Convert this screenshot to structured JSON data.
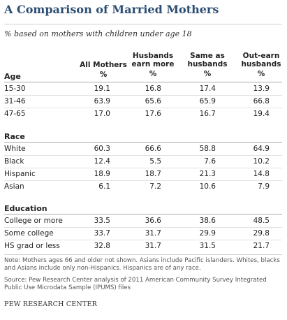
{
  "title": "A Comparison of Married Mothers",
  "subtitle": "% based on mothers with children under age 18",
  "columns": [
    {
      "label": "All Mothers",
      "unit": "%"
    },
    {
      "label": "Husbands earn more",
      "unit": "%"
    },
    {
      "label": "Same as husbands",
      "unit": "%"
    },
    {
      "label": "Out-earn husbands",
      "unit": "%"
    }
  ],
  "sections": {
    "age": {
      "label": "Age",
      "rows": [
        {
          "label": "15-30",
          "values": [
            "19.1",
            "16.8",
            "17.4",
            "13.9"
          ]
        },
        {
          "label": "31-46",
          "values": [
            "63.9",
            "65.6",
            "65.9",
            "66.8"
          ]
        },
        {
          "label": "47-65",
          "values": [
            "17.0",
            "17.6",
            "16.7",
            "19.4"
          ]
        }
      ]
    },
    "race": {
      "label": "Race",
      "rows": [
        {
          "label": "White",
          "values": [
            "60.3",
            "66.6",
            "58.8",
            "64.9"
          ]
        },
        {
          "label": "Black",
          "values": [
            "12.4",
            "5.5",
            "7.6",
            "10.2"
          ]
        },
        {
          "label": "Hispanic",
          "values": [
            "18.9",
            "18.7",
            "21.3",
            "14.8"
          ]
        },
        {
          "label": "Asian",
          "values": [
            "6.1",
            "7.2",
            "10.6",
            "7.9"
          ]
        }
      ]
    },
    "education": {
      "label": "Education",
      "rows": [
        {
          "label": "College or more",
          "values": [
            "33.5",
            "36.6",
            "38.6",
            "48.5"
          ]
        },
        {
          "label": "Some college",
          "values": [
            "33.7",
            "31.7",
            "29.9",
            "29.8"
          ]
        },
        {
          "label": "HS grad or less",
          "values": [
            "32.8",
            "31.7",
            "31.5",
            "21.7"
          ]
        }
      ]
    }
  },
  "note": "Note: Mothers ages 66 and older not shown. Asians include Pacific islanders. Whites, blacks and Asians include only non-Hispanics. Hispanics are of any race.",
  "source": "Source: Pew Research Center analysis of 2011 American Community Survey Integrated Public Use Microdata Sample (IPUMS) files",
  "brand": "PEW RESEARCH CENTER"
}
